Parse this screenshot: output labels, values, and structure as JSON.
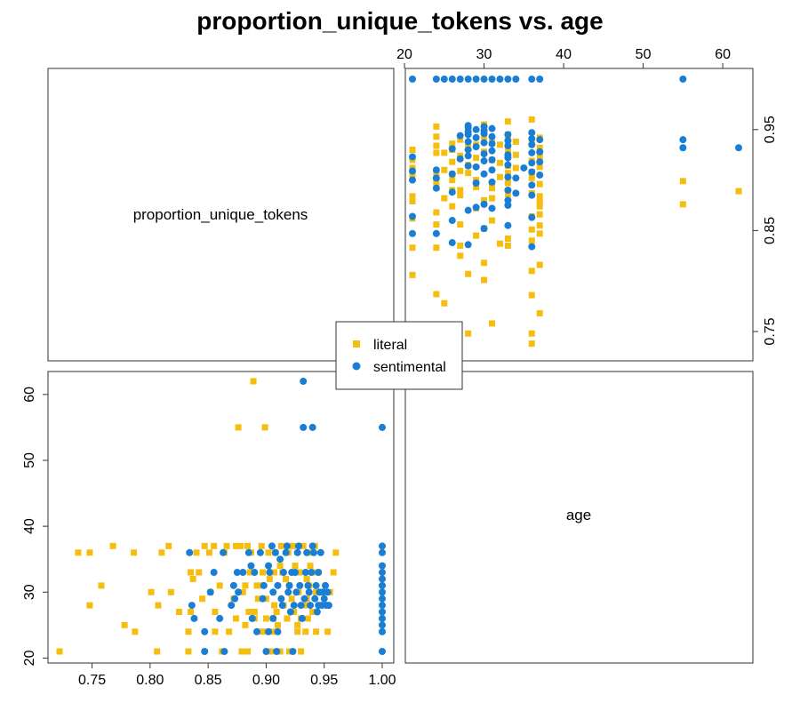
{
  "chart_data": {
    "type": "scatter",
    "layout": "scatterplot-matrix",
    "title": "proportion_unique_tokens vs. age",
    "variables": [
      "proportion_unique_tokens",
      "age"
    ],
    "axes": {
      "proportion_unique_tokens": {
        "range": [
          0.71,
          1.01
        ],
        "ticks": [
          "0.75",
          "0.80",
          "0.85",
          "0.90",
          "0.95",
          "1.00"
        ],
        "tick_values": [
          0.75,
          0.8,
          0.85,
          0.9,
          0.95,
          1.0
        ],
        "right_ticks": [
          "0.75",
          "0.85",
          "0.95"
        ],
        "right_tick_values": [
          0.75,
          0.85,
          0.95
        ]
      },
      "age": {
        "range": [
          19.7,
          63.2
        ],
        "ticks": [
          "20",
          "30",
          "40",
          "50",
          "60"
        ],
        "tick_values": [
          20,
          30,
          40,
          50,
          60
        ]
      }
    },
    "grid": false,
    "legend": {
      "position": "center"
    },
    "series": [
      {
        "name": "literal",
        "color": "#F5BE0F",
        "marker": "square",
        "points": [
          [
            0.722,
            21
          ],
          [
            0.738,
            36
          ],
          [
            0.748,
            36
          ],
          [
            0.748,
            28
          ],
          [
            0.758,
            31
          ],
          [
            0.768,
            37
          ],
          [
            0.778,
            25
          ],
          [
            0.786,
            36
          ],
          [
            0.787,
            24
          ],
          [
            0.801,
            30
          ],
          [
            0.806,
            21
          ],
          [
            0.807,
            28
          ],
          [
            0.81,
            36
          ],
          [
            0.816,
            37
          ],
          [
            0.818,
            30
          ],
          [
            0.825,
            27
          ],
          [
            0.833,
            21
          ],
          [
            0.833,
            24
          ],
          [
            0.835,
            27
          ],
          [
            0.835,
            33
          ],
          [
            0.837,
            32
          ],
          [
            0.84,
            36
          ],
          [
            0.842,
            33
          ],
          [
            0.845,
            29
          ],
          [
            0.847,
            37
          ],
          [
            0.851,
            36
          ],
          [
            0.852,
            30
          ],
          [
            0.855,
            37
          ],
          [
            0.856,
            27
          ],
          [
            0.856,
            24
          ],
          [
            0.86,
            31
          ],
          [
            0.862,
            21
          ],
          [
            0.864,
            36
          ],
          [
            0.866,
            37
          ],
          [
            0.868,
            24
          ],
          [
            0.872,
            29
          ],
          [
            0.874,
            37
          ],
          [
            0.874,
            26
          ],
          [
            0.876,
            55
          ],
          [
            0.878,
            37
          ],
          [
            0.879,
            21
          ],
          [
            0.88,
            30
          ],
          [
            0.882,
            25
          ],
          [
            0.882,
            31
          ],
          [
            0.884,
            37
          ],
          [
            0.884,
            21
          ],
          [
            0.885,
            27
          ],
          [
            0.886,
            33
          ],
          [
            0.887,
            36
          ],
          [
            0.889,
            62
          ],
          [
            0.89,
            27
          ],
          [
            0.89,
            26
          ],
          [
            0.892,
            31
          ],
          [
            0.893,
            29
          ],
          [
            0.895,
            31
          ],
          [
            0.896,
            37
          ],
          [
            0.897,
            24
          ],
          [
            0.897,
            33
          ],
          [
            0.899,
            55
          ],
          [
            0.9,
            26
          ],
          [
            0.9,
            29
          ],
          [
            0.902,
            36
          ],
          [
            0.903,
            32
          ],
          [
            0.904,
            21
          ],
          [
            0.905,
            24
          ],
          [
            0.906,
            26
          ],
          [
            0.907,
            28
          ],
          [
            0.907,
            33
          ],
          [
            0.908,
            36
          ],
          [
            0.909,
            27
          ],
          [
            0.91,
            25
          ],
          [
            0.912,
            34
          ],
          [
            0.912,
            21
          ],
          [
            0.913,
            37
          ],
          [
            0.914,
            33
          ],
          [
            0.915,
            28
          ],
          [
            0.917,
            32
          ],
          [
            0.918,
            26
          ],
          [
            0.919,
            36
          ],
          [
            0.92,
            31
          ],
          [
            0.92,
            21
          ],
          [
            0.922,
            29
          ],
          [
            0.923,
            37
          ],
          [
            0.924,
            27
          ],
          [
            0.925,
            34
          ],
          [
            0.927,
            24
          ],
          [
            0.927,
            25
          ],
          [
            0.928,
            30
          ],
          [
            0.929,
            33
          ],
          [
            0.93,
            26
          ],
          [
            0.93,
            21
          ],
          [
            0.932,
            37
          ],
          [
            0.933,
            28
          ],
          [
            0.934,
            24
          ],
          [
            0.935,
            32
          ],
          [
            0.935,
            29
          ],
          [
            0.936,
            26
          ],
          [
            0.937,
            31
          ],
          [
            0.938,
            34
          ],
          [
            0.939,
            36
          ],
          [
            0.94,
            33
          ],
          [
            0.94,
            27
          ],
          [
            0.942,
            37
          ],
          [
            0.943,
            24
          ],
          [
            0.943,
            30
          ],
          [
            0.945,
            33
          ],
          [
            0.948,
            28
          ],
          [
            0.953,
            24
          ],
          [
            0.955,
            30
          ],
          [
            0.958,
            33
          ],
          [
            0.96,
            36
          ]
        ]
      },
      {
        "name": "sentimental",
        "color": "#1A7ED4",
        "marker": "circle",
        "points": [
          [
            0.834,
            36
          ],
          [
            0.836,
            28
          ],
          [
            0.838,
            26
          ],
          [
            0.847,
            24
          ],
          [
            0.847,
            21
          ],
          [
            0.852,
            30
          ],
          [
            0.855,
            33
          ],
          [
            0.86,
            26
          ],
          [
            0.863,
            36
          ],
          [
            0.864,
            21
          ],
          [
            0.87,
            28
          ],
          [
            0.872,
            31
          ],
          [
            0.873,
            29
          ],
          [
            0.875,
            33
          ],
          [
            0.876,
            30
          ],
          [
            0.88,
            33
          ],
          [
            0.885,
            36
          ],
          [
            0.887,
            34
          ],
          [
            0.888,
            26
          ],
          [
            0.89,
            33
          ],
          [
            0.892,
            24
          ],
          [
            0.895,
            36
          ],
          [
            0.897,
            29
          ],
          [
            0.898,
            31
          ],
          [
            0.9,
            21
          ],
          [
            0.902,
            24
          ],
          [
            0.902,
            34
          ],
          [
            0.903,
            33
          ],
          [
            0.905,
            37
          ],
          [
            0.906,
            26
          ],
          [
            0.906,
            30
          ],
          [
            0.908,
            36
          ],
          [
            0.909,
            21
          ],
          [
            0.91,
            24
          ],
          [
            0.91,
            31
          ],
          [
            0.912,
            35
          ],
          [
            0.913,
            29
          ],
          [
            0.914,
            28
          ],
          [
            0.915,
            33
          ],
          [
            0.917,
            36
          ],
          [
            0.918,
            37
          ],
          [
            0.919,
            30
          ],
          [
            0.92,
            31
          ],
          [
            0.921,
            27
          ],
          [
            0.922,
            33
          ],
          [
            0.923,
            21
          ],
          [
            0.924,
            28
          ],
          [
            0.925,
            33
          ],
          [
            0.926,
            30
          ],
          [
            0.927,
            36
          ],
          [
            0.928,
            37
          ],
          [
            0.929,
            31
          ],
          [
            0.93,
            28
          ],
          [
            0.931,
            26
          ],
          [
            0.932,
            62
          ],
          [
            0.932,
            55
          ],
          [
            0.933,
            29
          ],
          [
            0.934,
            33
          ],
          [
            0.935,
            36
          ],
          [
            0.936,
            31
          ],
          [
            0.937,
            30
          ],
          [
            0.938,
            28
          ],
          [
            0.939,
            33
          ],
          [
            0.94,
            37
          ],
          [
            0.94,
            55
          ],
          [
            0.941,
            36
          ],
          [
            0.942,
            29
          ],
          [
            0.943,
            31
          ],
          [
            0.944,
            27
          ],
          [
            0.945,
            28
          ],
          [
            0.945,
            33
          ],
          [
            0.946,
            30
          ],
          [
            0.947,
            36
          ],
          [
            0.948,
            28
          ],
          [
            0.949,
            30
          ],
          [
            0.95,
            29
          ],
          [
            0.951,
            31
          ],
          [
            0.952,
            28
          ],
          [
            0.953,
            30
          ],
          [
            0.954,
            28
          ],
          [
            1.0,
            21
          ],
          [
            1.0,
            24
          ],
          [
            1.0,
            25
          ],
          [
            1.0,
            26
          ],
          [
            1.0,
            27
          ],
          [
            1.0,
            28
          ],
          [
            1.0,
            29
          ],
          [
            1.0,
            30
          ],
          [
            1.0,
            31
          ],
          [
            1.0,
            32
          ],
          [
            1.0,
            33
          ],
          [
            1.0,
            34
          ],
          [
            1.0,
            36
          ],
          [
            1.0,
            37
          ],
          [
            1.0,
            55
          ]
        ]
      }
    ]
  }
}
